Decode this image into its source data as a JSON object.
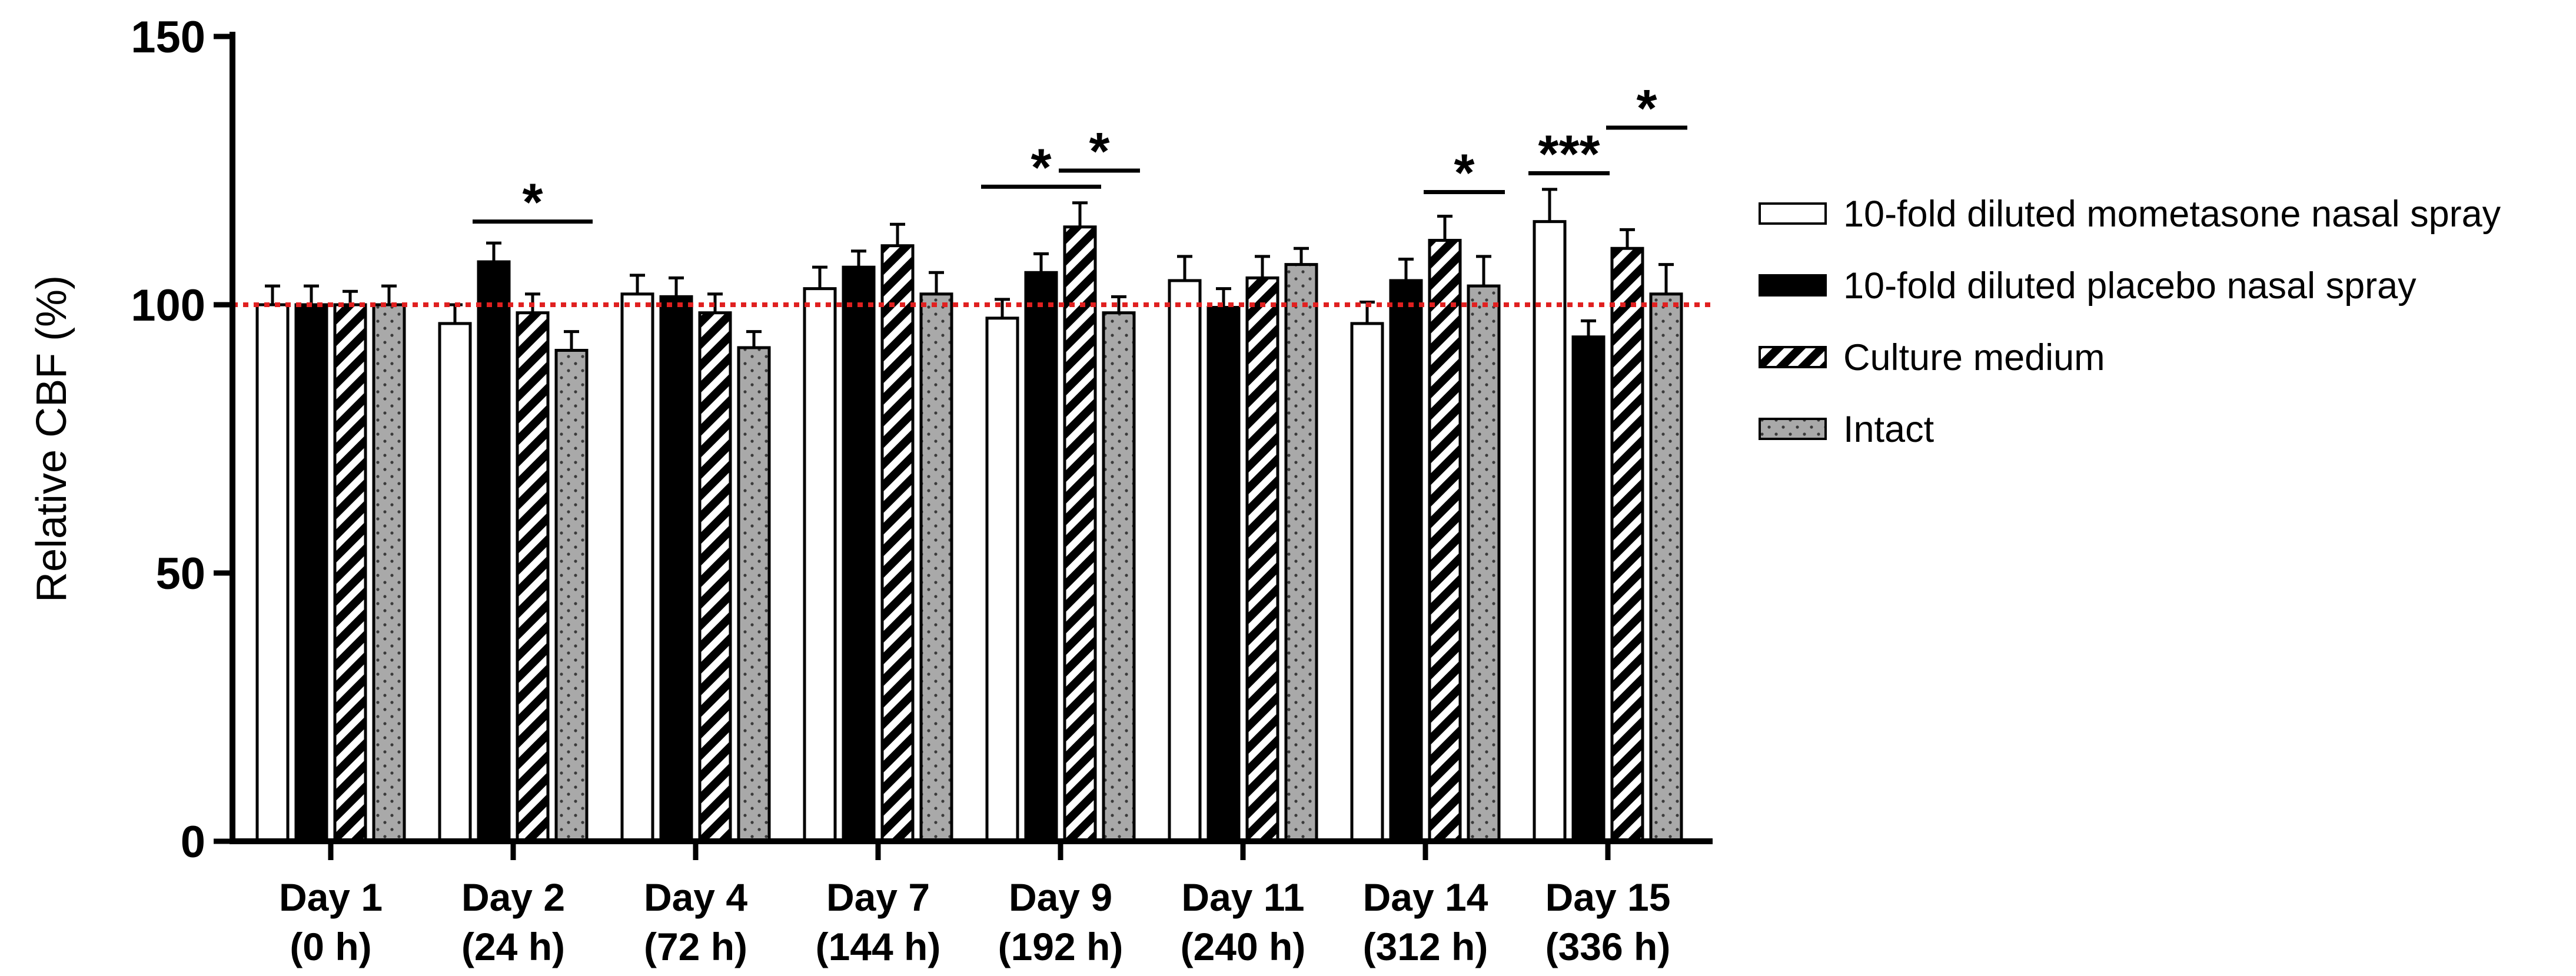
{
  "chart_data": {
    "type": "bar",
    "title": "",
    "xlabel": "",
    "ylabel": "Relative CBF (%)",
    "ylim": [
      0,
      150
    ],
    "yticks": [
      0,
      50,
      100,
      150
    ],
    "reference_line": {
      "value": 100,
      "color": "#e02020",
      "style": "dotted"
    },
    "categories": [
      {
        "day": "Day 1",
        "hours": "(0 h)"
      },
      {
        "day": "Day 2",
        "hours": "(24 h)"
      },
      {
        "day": "Day 4",
        "hours": "(72 h)"
      },
      {
        "day": "Day 7",
        "hours": "(144 h)"
      },
      {
        "day": "Day 9",
        "hours": "(192 h)"
      },
      {
        "day": "Day 11",
        "hours": "(240 h)"
      },
      {
        "day": "Day 14",
        "hours": "(312 h)"
      },
      {
        "day": "Day 15",
        "hours": "(336 h)"
      }
    ],
    "series": [
      {
        "name": "10-fold diluted mometasone nasal spray",
        "fill": "white",
        "values": [
          100,
          96.5,
          102,
          103,
          97.5,
          104.5,
          96.5,
          115.5
        ],
        "errors": [
          3.5,
          3.5,
          3.5,
          4,
          3.5,
          4.5,
          4,
          6
        ]
      },
      {
        "name": "10-fold diluted placebo nasal spray",
        "fill": "black",
        "values": [
          100,
          108,
          101.5,
          107,
          106,
          99.5,
          104.5,
          94
        ],
        "errors": [
          3.5,
          3.5,
          3.5,
          3,
          3.5,
          3.5,
          4,
          3
        ]
      },
      {
        "name": "Culture medium",
        "fill": "hatch",
        "values": [
          100,
          98.5,
          98.5,
          111,
          114.5,
          105,
          112,
          110.5
        ],
        "errors": [
          2.5,
          3.5,
          3.5,
          4,
          4.5,
          4,
          4.5,
          3.5
        ]
      },
      {
        "name": "Intact",
        "fill": "dots",
        "values": [
          100,
          91.5,
          92,
          102,
          98.5,
          107.5,
          103.5,
          102
        ],
        "errors": [
          3.5,
          3.5,
          3,
          4,
          3,
          3,
          5.5,
          5.5
        ]
      }
    ],
    "significance": [
      {
        "label": "*",
        "category": 1,
        "from_series": 1,
        "to_series": 3,
        "at_value": 115.5
      },
      {
        "label": "*",
        "category": 4,
        "from_series": 0,
        "to_series": 2,
        "at_value": 122
      },
      {
        "label": "*",
        "category": 4,
        "from_series": 2,
        "to_series": 3,
        "at_value": 125
      },
      {
        "label": "*",
        "category": 6,
        "from_series": 2,
        "to_series": 3,
        "at_value": 121
      },
      {
        "label": "***",
        "category": 7,
        "from_series": 0,
        "to_series": 1,
        "at_value": 124.5
      },
      {
        "label": "*",
        "category": 7,
        "from_series": 2,
        "to_series": 3,
        "at_value": 133
      }
    ],
    "legend_position": "right"
  }
}
